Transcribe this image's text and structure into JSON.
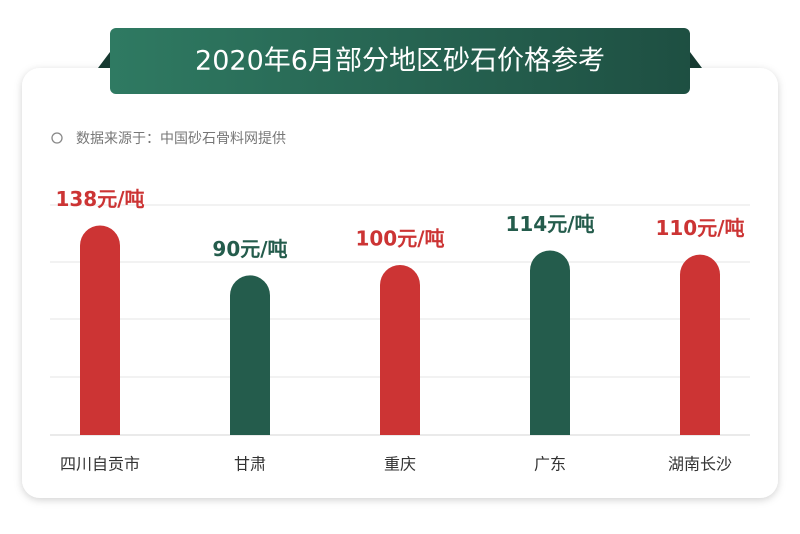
{
  "chart_data": {
    "type": "bar",
    "title": "2020年6月部分地区砂石价格参考",
    "subtitle": "数据来源于：中国砂石骨料网提供",
    "categories": [
      "四川自贡市",
      "甘肃",
      "重庆",
      "广东",
      "湖南长沙"
    ],
    "values": [
      138,
      90,
      100,
      114,
      110
    ],
    "value_labels": [
      "138元/吨",
      "90元/吨",
      "100元/吨",
      "114元/吨",
      "110元/吨"
    ],
    "colors": [
      "#cc3434",
      "#245c4c",
      "#cc3434",
      "#245c4c",
      "#cc3434"
    ]
  }
}
